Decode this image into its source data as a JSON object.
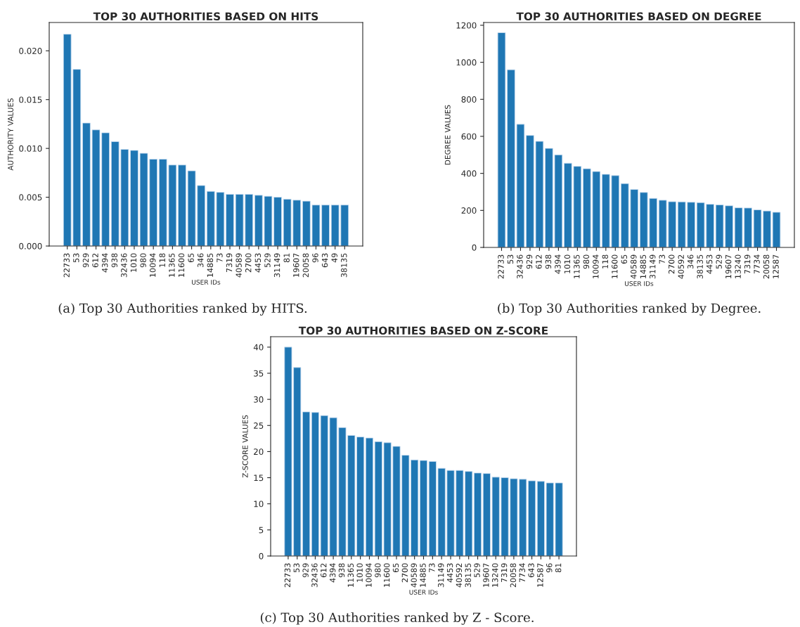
{
  "chart_data": [
    {
      "type": "bar",
      "title": "TOP 30 AUTHORITIES BASED ON HITS",
      "xlabel": "USER IDs",
      "ylabel": "AUTHORITY VALUES",
      "color": "#1f77b4",
      "categories": [
        "22733",
        "53",
        "929",
        "612",
        "4394",
        "938",
        "32436",
        "1010",
        "980",
        "10094",
        "118",
        "11365",
        "11600",
        "65",
        "346",
        "14885",
        "73",
        "7319",
        "40589",
        "2700",
        "4453",
        "529",
        "31149",
        "81",
        "19607",
        "20058",
        "96",
        "643",
        "49",
        "38135"
      ],
      "values": [
        0.0217,
        0.0181,
        0.0126,
        0.0119,
        0.0116,
        0.0107,
        0.0099,
        0.0098,
        0.0095,
        0.0089,
        0.0089,
        0.0083,
        0.0083,
        0.0077,
        0.0062,
        0.0056,
        0.0055,
        0.0053,
        0.0053,
        0.0053,
        0.0052,
        0.0051,
        0.005,
        0.0048,
        0.0047,
        0.0046,
        0.0042,
        0.0042,
        0.0042,
        0.0042
      ],
      "ylim": [
        0,
        0.0229
      ],
      "yticks": [
        {
          "value": 0,
          "label": "0.000"
        },
        {
          "value": 0.005,
          "label": "0.005"
        },
        {
          "value": 0.01,
          "label": "0.010"
        },
        {
          "value": 0.015,
          "label": "0.015"
        },
        {
          "value": 0.02,
          "label": "0.020"
        }
      ],
      "grid": false,
      "annotations": [
        "(a) Top 30 Authorities ranked by HITS."
      ]
    },
    {
      "type": "bar",
      "title": "TOP 30 AUTHORITIES BASED ON DEGREE",
      "xlabel": "USER IDs",
      "ylabel": "DEGREE VALUES",
      "color": "#1f77b4",
      "categories": [
        "22733",
        "53",
        "32436",
        "929",
        "612",
        "938",
        "4394",
        "1010",
        "11365",
        "980",
        "10094",
        "118",
        "11600",
        "65",
        "40589",
        "14885",
        "31149",
        "73",
        "2700",
        "40592",
        "346",
        "38135",
        "4453",
        "529",
        "19607",
        "13240",
        "7319",
        "7734",
        "20058",
        "12587"
      ],
      "values": [
        1160,
        960,
        665,
        605,
        573,
        535,
        500,
        455,
        438,
        425,
        410,
        395,
        388,
        345,
        313,
        297,
        265,
        255,
        247,
        246,
        244,
        242,
        233,
        230,
        225,
        214,
        213,
        203,
        197,
        190
      ],
      "ylim": [
        0,
        1215
      ],
      "yticks": [
        0,
        200,
        400,
        600,
        800,
        1000,
        1200
      ],
      "grid": false,
      "annotations": [
        "(b) Top 30 Authorities ranked by Degree."
      ]
    },
    {
      "type": "bar",
      "title": "TOP 30 AUTHORITIES BASED ON Z-SCORE",
      "xlabel": "USER IDs",
      "ylabel": "Z-SCORE VALUES",
      "color": "#1f77b4",
      "categories": [
        "22733",
        "53",
        "929",
        "32436",
        "612",
        "4394",
        "938",
        "11365",
        "1010",
        "10094",
        "980",
        "11600",
        "65",
        "2700",
        "40589",
        "14885",
        "73",
        "31149",
        "4453",
        "40592",
        "38135",
        "529",
        "19607",
        "13240",
        "7319",
        "20058",
        "7734",
        "643",
        "12587",
        "96",
        "81"
      ],
      "values": [
        40,
        36.1,
        27.6,
        27.5,
        26.9,
        26.5,
        24.6,
        23.1,
        22.8,
        22.6,
        21.9,
        21.7,
        21.0,
        19.3,
        18.4,
        18.3,
        18.1,
        16.8,
        16.4,
        16.4,
        16.2,
        15.9,
        15.8,
        15.1,
        15.0,
        14.8,
        14.7,
        14.4,
        14.3,
        14.0,
        14.0
      ],
      "ylim": [
        0,
        42
      ],
      "yticks": [
        0,
        5,
        10,
        15,
        20,
        25,
        30,
        35,
        40
      ],
      "grid": false,
      "annotations": [
        "(c) Top 30 Authorities ranked by Z - Score."
      ]
    }
  ]
}
